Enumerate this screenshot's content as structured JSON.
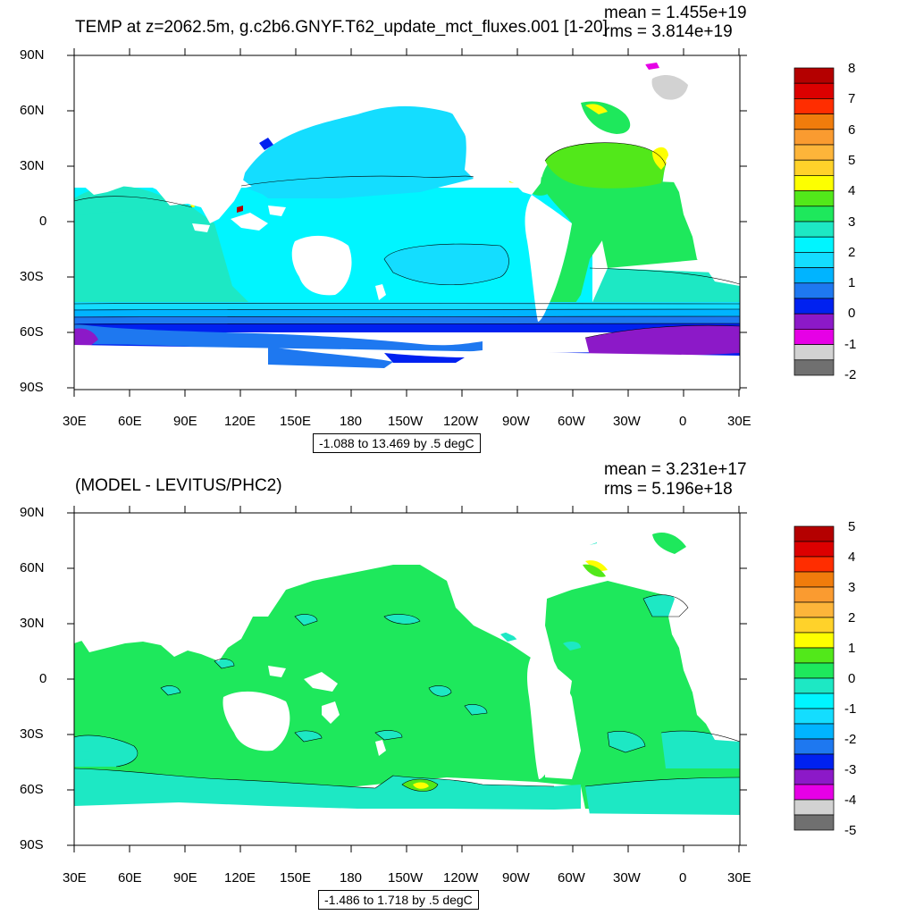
{
  "panel1": {
    "title": "TEMP at z=2062.5m, g.c2b6.GNYF.T62_update_mct_fluxes.001 [1-20]",
    "mean_label": "mean = 1.455e+19",
    "rms_label": "rms = 3.814e+19",
    "range_label": "-1.088 to 13.469 by .5 degC",
    "lat_labels": [
      "90N",
      "60N",
      "30N",
      "0",
      "30S",
      "60S",
      "90S"
    ],
    "lon_labels": [
      "30E",
      "60E",
      "90E",
      "120E",
      "150E",
      "180",
      "150W",
      "120W",
      "90W",
      "60W",
      "30W",
      "0",
      "30E"
    ],
    "colorbar_labels": [
      "8",
      "7",
      "6",
      "5",
      "4",
      "3",
      "2",
      "1",
      "0",
      "-1",
      "-2"
    ]
  },
  "panel2": {
    "title": "(MODEL - LEVITUS/PHC2)",
    "mean_label": "mean = 3.231e+17",
    "rms_label": "rms = 5.196e+18",
    "range_label": "-1.486 to 1.718 by .5 degC",
    "lat_labels": [
      "90N",
      "60N",
      "30N",
      "0",
      "30S",
      "60S",
      "90S"
    ],
    "lon_labels": [
      "30E",
      "60E",
      "90E",
      "120E",
      "150E",
      "180",
      "150W",
      "120W",
      "90W",
      "60W",
      "30W",
      "0",
      "30E"
    ],
    "colorbar_labels": [
      "5",
      "4",
      "3",
      "2",
      "1",
      "0",
      "-1",
      "-2",
      "-3",
      "-4",
      "-5"
    ]
  },
  "colors": {
    "palette_top_to_bottom": [
      "#b40000",
      "#dc0000",
      "#ff2d00",
      "#f07c0c",
      "#fa9b30",
      "#fdb53a",
      "#ffd22a",
      "#fdff00",
      "#52e81a",
      "#1ee85c",
      "#1de8c4",
      "#00f5ff",
      "#14ddff",
      "#00b4ff",
      "#1e78f0",
      "#0021f0",
      "#8c19c8",
      "#e600e6",
      "#d2d2d2",
      "#707070"
    ],
    "land": "#ffffff"
  }
}
